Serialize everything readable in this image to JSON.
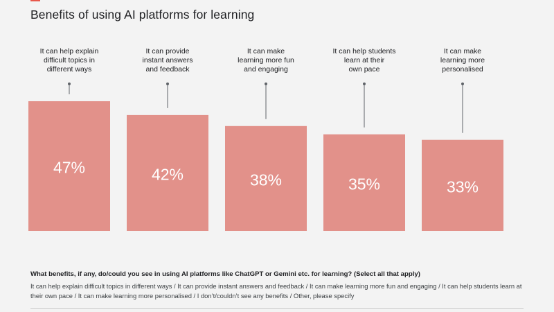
{
  "header": {
    "title": "Benefits of using AI platforms for learning",
    "accent_color": "#e8584b"
  },
  "chart_data": {
    "type": "bar",
    "title": "Benefits of using AI platforms for learning",
    "bar_color": "#e2918a",
    "value_label_color": "#ffffff",
    "categories": [
      [
        "It can help explain",
        "difficult topics in",
        "different ways"
      ],
      [
        "It can provide",
        "instant answers",
        "and feedback"
      ],
      [
        "It can make",
        "learning more fun",
        "and engaging"
      ],
      [
        "It can help students",
        "learn at their",
        "own pace"
      ],
      [
        "It can make",
        "learning more",
        "personalised"
      ]
    ],
    "values": [
      47,
      42,
      38,
      35,
      33
    ],
    "value_labels": [
      "47%",
      "42%",
      "38%",
      "35%",
      "33%"
    ],
    "unit": "%",
    "ylim": [
      0,
      47
    ],
    "grid": false,
    "legend": "none"
  },
  "footer": {
    "question": "What benefits, if any, do/could you see in using AI platforms like ChatGPT or Gemini etc. for learning? (Select all that apply)",
    "options_text": "It can help explain difficult topics in different ways / It can provide instant answers and feedback / It can make learning more fun and engaging / It can help students learn at their own pace / It can make learning more personalised / I don’t/couldn’t see any benefits / Other, please specify"
  }
}
